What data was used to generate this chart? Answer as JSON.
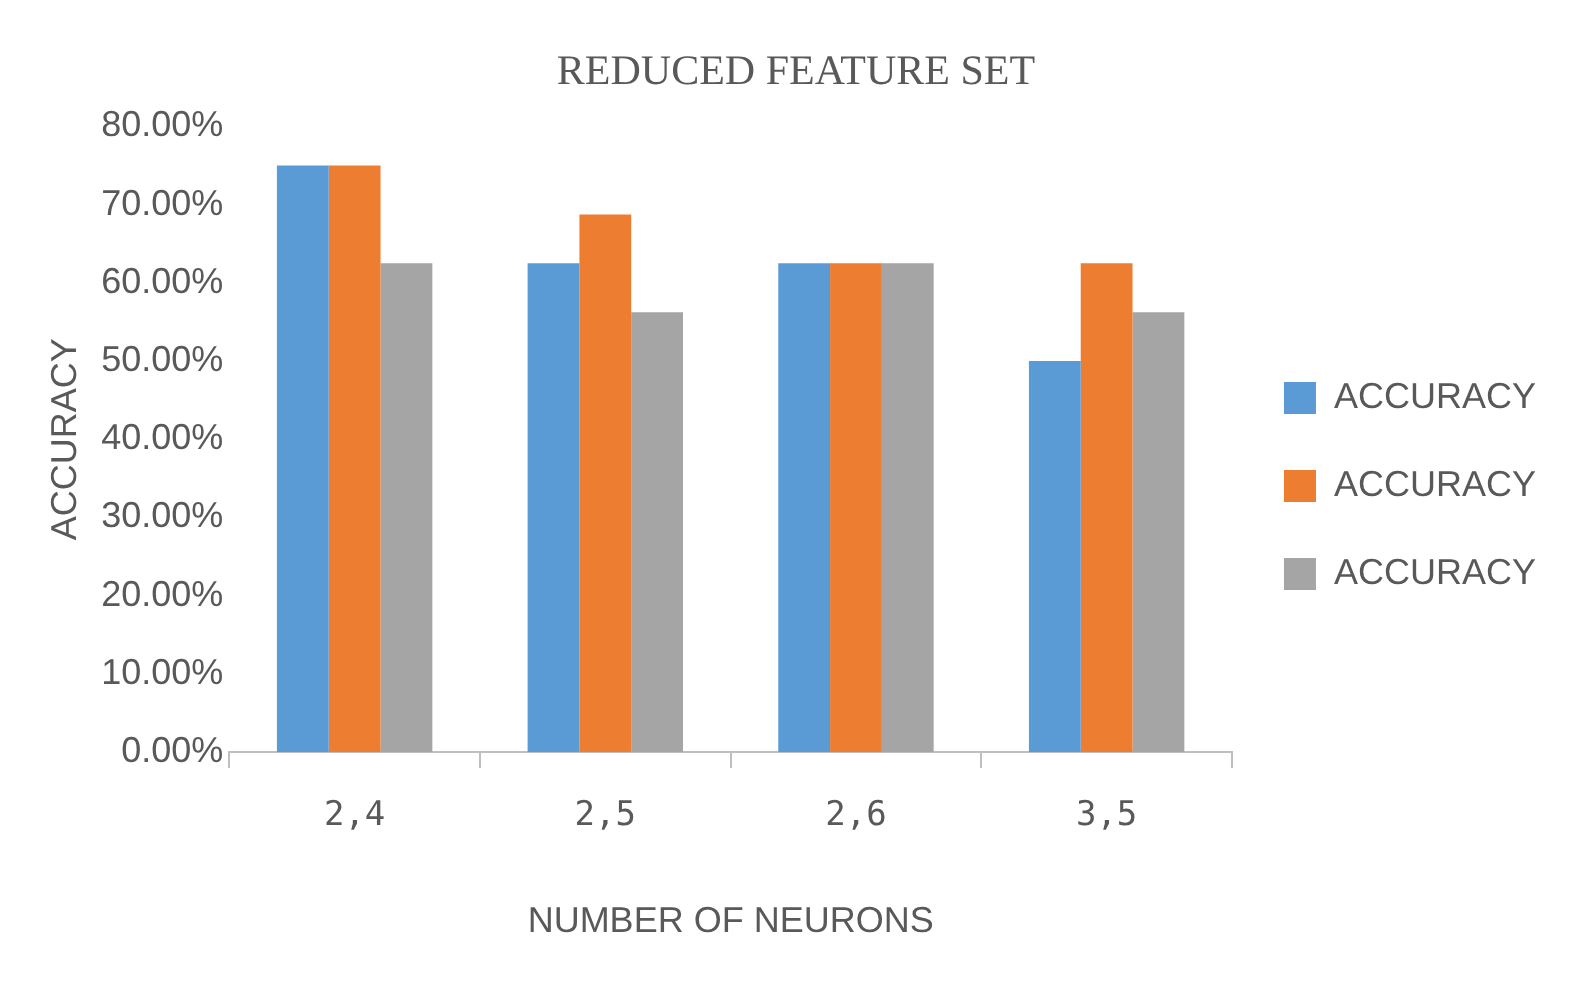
{
  "chart_data": {
    "type": "bar",
    "title": "REDUCED FEATURE SET",
    "xlabel": "NUMBER OF NEURONS",
    "ylabel": "ACCURACY",
    "categories": [
      "2,4",
      "2,5",
      "2,6",
      "3,5"
    ],
    "series": [
      {
        "name": "ACCURACY",
        "color": "#5b9bd5",
        "values": [
          75,
          62.5,
          62.5,
          50
        ]
      },
      {
        "name": "ACCURACY",
        "color": "#ed7d31",
        "values": [
          75,
          68.75,
          62.5,
          62.5
        ]
      },
      {
        "name": "ACCURACY",
        "color": "#a5a5a5",
        "values": [
          62.5,
          56.25,
          62.5,
          56.25
        ]
      }
    ],
    "ylim": [
      0,
      80
    ],
    "yticks": [
      {
        "value": 0,
        "label": "0.00%"
      },
      {
        "value": 10,
        "label": "10.00%"
      },
      {
        "value": 20,
        "label": "20.00%"
      },
      {
        "value": 30,
        "label": "30.00%"
      },
      {
        "value": 40,
        "label": "40.00%"
      },
      {
        "value": 50,
        "label": "50.00%"
      },
      {
        "value": 60,
        "label": "60.00%"
      },
      {
        "value": 70,
        "label": "70.00%"
      },
      {
        "value": 80,
        "label": "80.00%"
      }
    ],
    "grid": false,
    "legend": "right"
  }
}
